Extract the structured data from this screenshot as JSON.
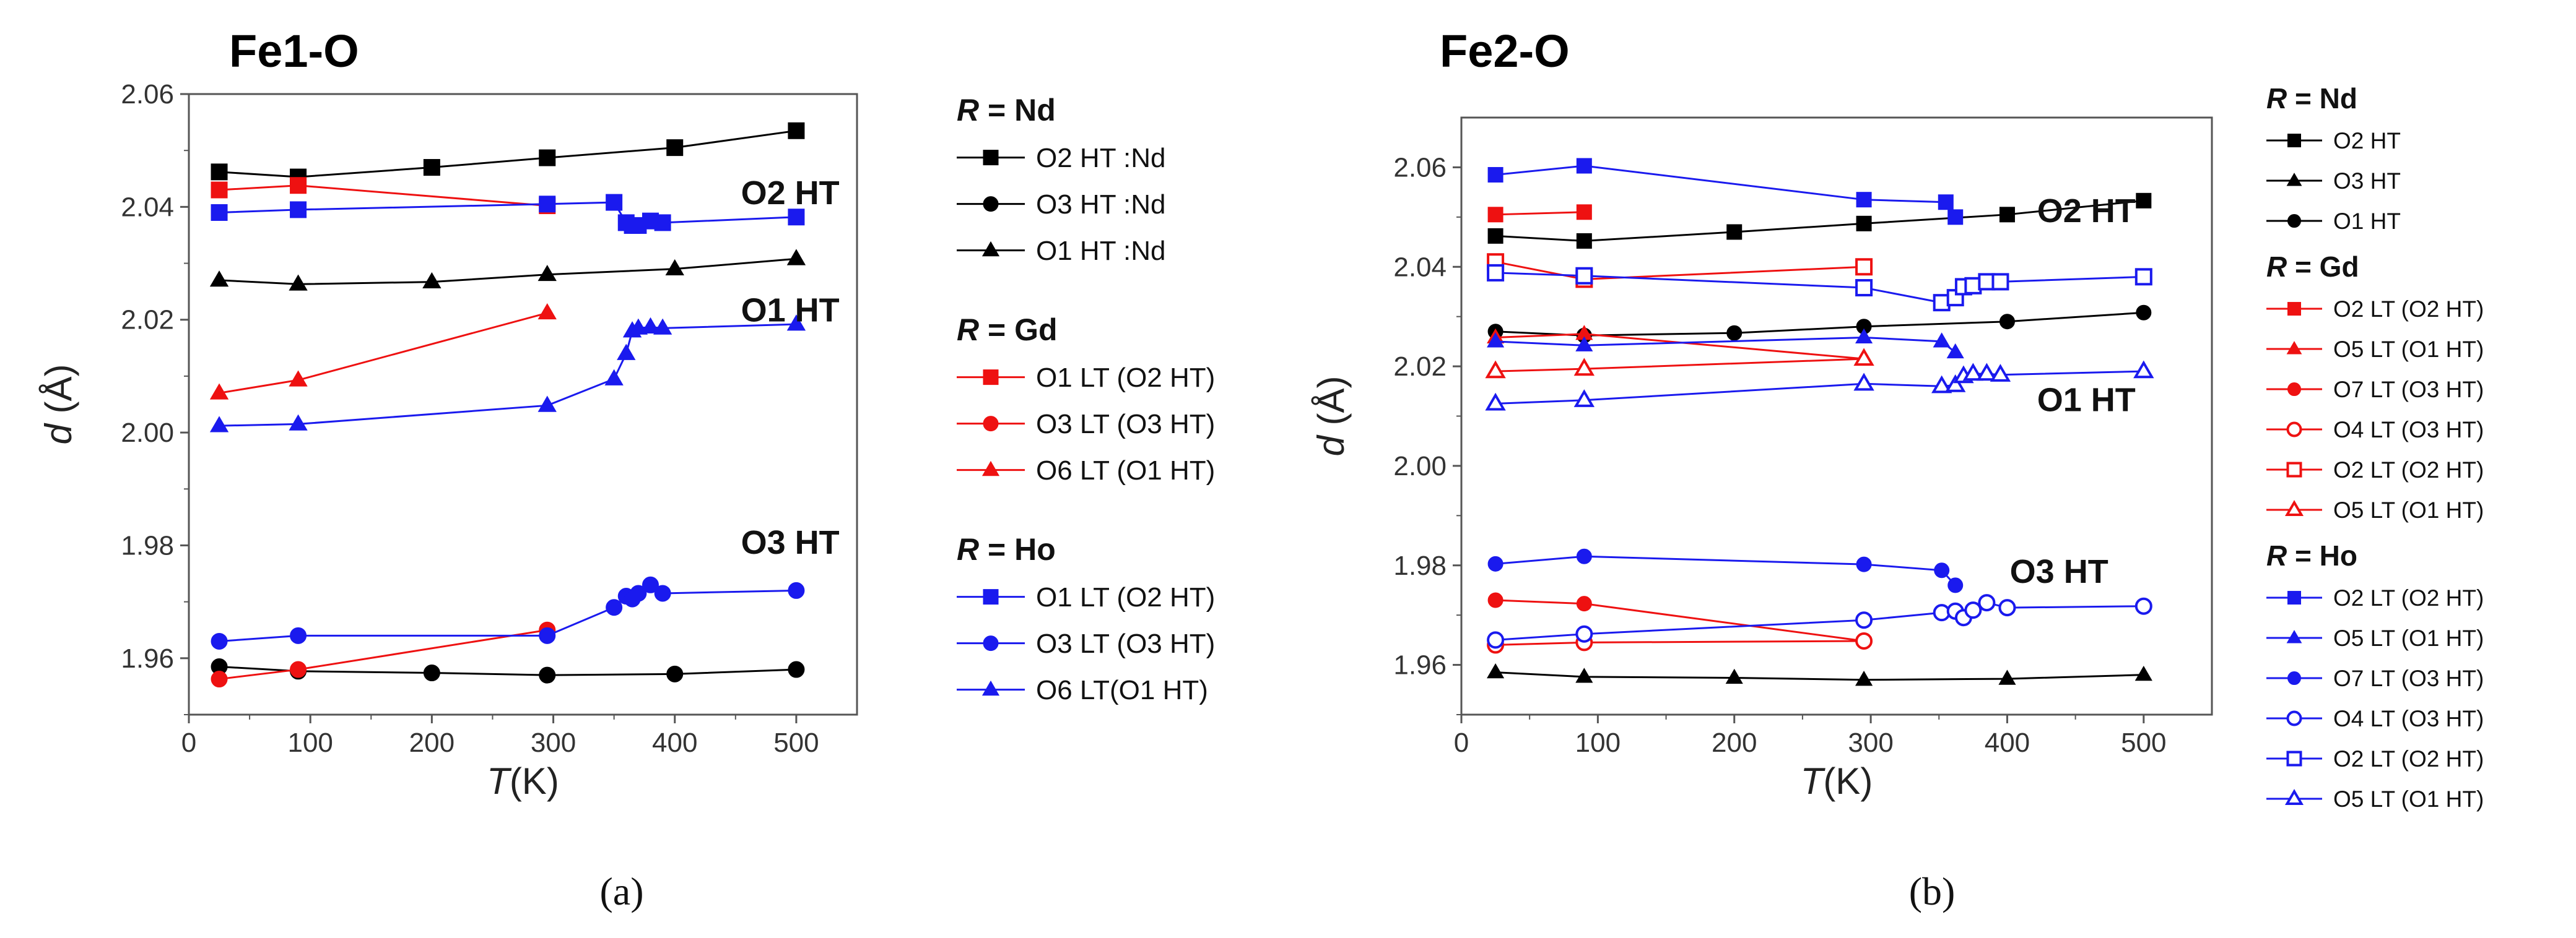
{
  "colors": {
    "Nd": "#000000",
    "Gd": "#ee1111",
    "Ho": "#1a1aee"
  },
  "chart_data": [
    {
      "type": "line",
      "panel": "a",
      "caption": "(a)",
      "title": "Fe1-O",
      "xlabel_italic": "T",
      "xlabel_rest": "(K)",
      "ylabel_italic": "d",
      "ylabel_rest": " (Å)",
      "xlim": [
        0,
        550
      ],
      "ylim": [
        1.95,
        2.06
      ],
      "xticks": [
        0,
        100,
        200,
        300,
        400,
        500
      ],
      "xtick_labels": [
        "0",
        "100",
        "200",
        "300",
        "400",
        "500"
      ],
      "yticks": [
        1.96,
        1.98,
        2.0,
        2.02,
        2.04,
        2.06
      ],
      "ytick_labels": [
        "1.96",
        "1.98",
        "2.00",
        "2.02",
        "2.04",
        "2.06"
      ],
      "annotations": [
        {
          "text": "O2 HT",
          "x": 495,
          "y": 2.0405
        },
        {
          "text": "O1 HT",
          "x": 495,
          "y": 2.0197
        },
        {
          "text": "O3 HT",
          "x": 495,
          "y": 1.9785
        }
      ],
      "legend_groups": [
        {
          "header_italic": "R",
          "header_rest": " = Nd",
          "entries": [
            0,
            1,
            2
          ]
        },
        {
          "header_italic": "R",
          "header_rest": " = Gd",
          "entries": [
            3,
            4,
            5
          ]
        },
        {
          "header_italic": "R",
          "header_rest": " = Ho",
          "entries": [
            6,
            7,
            8
          ]
        }
      ],
      "series": [
        {
          "name": "O2 HT :Nd",
          "group": "Nd",
          "marker": "square",
          "filled": true,
          "x": [
            25,
            90,
            200,
            295,
            400,
            500
          ],
          "y": [
            2.0462,
            2.0453,
            2.047,
            2.0487,
            2.0505,
            2.0535
          ]
        },
        {
          "name": "O3 HT :Nd",
          "group": "Nd",
          "marker": "circle",
          "filled": true,
          "x": [
            25,
            90,
            200,
            295,
            400,
            500
          ],
          "y": [
            1.9585,
            1.9577,
            1.9574,
            1.957,
            1.9572,
            1.958
          ]
        },
        {
          "name": "O1 HT :Nd",
          "group": "Nd",
          "marker": "triangle",
          "filled": true,
          "x": [
            25,
            90,
            200,
            295,
            400,
            500
          ],
          "y": [
            2.027,
            2.0263,
            2.0267,
            2.028,
            2.029,
            2.0308
          ]
        },
        {
          "name": "O1 LT (O2 HT)",
          "group": "Gd",
          "marker": "square",
          "filled": true,
          "x": [
            25,
            90,
            295
          ],
          "y": [
            2.043,
            2.0438,
            2.0402
          ]
        },
        {
          "name": "O3 LT (O3 HT)",
          "group": "Gd",
          "marker": "circle",
          "filled": true,
          "x": [
            25,
            90,
            295
          ],
          "y": [
            1.9563,
            1.958,
            1.965
          ]
        },
        {
          "name": "O6 LT (O1 HT)",
          "group": "Gd",
          "marker": "triangle",
          "filled": true,
          "x": [
            25,
            90,
            295
          ],
          "y": [
            2.007,
            2.0093,
            2.0212
          ]
        },
        {
          "name": "O1 LT (O2 HT)",
          "group": "Ho",
          "marker": "square",
          "filled": true,
          "x": [
            25,
            90,
            295,
            350,
            360,
            365,
            370,
            380,
            390,
            500
          ],
          "y": [
            2.039,
            2.0395,
            2.0405,
            2.0408,
            2.0372,
            2.0367,
            2.0367,
            2.0375,
            2.0372,
            2.0382
          ]
        },
        {
          "name": "O3 LT (O3 HT)",
          "group": "Ho",
          "marker": "circle",
          "filled": true,
          "x": [
            25,
            90,
            295,
            350,
            360,
            365,
            370,
            380,
            390,
            500
          ],
          "y": [
            1.963,
            1.964,
            1.964,
            1.969,
            1.971,
            1.9705,
            1.9715,
            1.973,
            1.9715,
            1.972
          ]
        },
        {
          "name": "O6 LT(O1 HT)",
          "group": "Ho",
          "marker": "triangle",
          "filled": true,
          "x": [
            25,
            90,
            295,
            350,
            360,
            365,
            370,
            380,
            390,
            500
          ],
          "y": [
            2.0012,
            2.0015,
            2.0048,
            2.0095,
            2.014,
            2.018,
            2.0185,
            2.0187,
            2.0185,
            2.0192
          ]
        }
      ]
    },
    {
      "type": "line",
      "panel": "b",
      "caption": "(b)",
      "title": "Fe2-O",
      "xlabel_italic": "T",
      "xlabel_rest": "(K)",
      "ylabel_italic": "d",
      "ylabel_rest": " (Å)",
      "xlim": [
        0,
        550
      ],
      "ylim": [
        1.95,
        2.07
      ],
      "xticks": [
        0,
        100,
        200,
        300,
        400,
        500
      ],
      "xtick_labels": [
        "0",
        "100",
        "200",
        "300",
        "400",
        "500"
      ],
      "yticks": [
        1.96,
        1.98,
        2.0,
        2.02,
        2.04,
        2.06
      ],
      "ytick_labels": [
        "1.96",
        "1.98",
        "2.00",
        "2.02",
        "2.04",
        "2.06"
      ],
      "annotations": [
        {
          "text": "O2 HT",
          "x": 458,
          "y": 2.049
        },
        {
          "text": "O1 HT",
          "x": 458,
          "y": 2.011
        },
        {
          "text": "O3 HT",
          "x": 438,
          "y": 1.9765
        }
      ],
      "legend_groups": [
        {
          "header_italic": "R",
          "header_rest": " = Nd",
          "entries": [
            0,
            1,
            2
          ]
        },
        {
          "header_italic": "R",
          "header_rest": " = Gd",
          "entries": [
            3,
            4,
            5,
            6,
            7,
            8
          ]
        },
        {
          "header_italic": "R",
          "header_rest": " = Ho",
          "entries": [
            9,
            10,
            11,
            12,
            13,
            14
          ]
        }
      ],
      "series": [
        {
          "name": "O2 HT",
          "group": "Nd",
          "marker": "square",
          "filled": true,
          "x": [
            25,
            90,
            200,
            295,
            400,
            500
          ],
          "y": [
            2.0462,
            2.0452,
            2.047,
            2.0487,
            2.0505,
            2.0533
          ]
        },
        {
          "name": "O3 HT",
          "group": "Nd",
          "marker": "triangle",
          "filled": true,
          "x": [
            25,
            90,
            200,
            295,
            400,
            500
          ],
          "y": [
            1.9585,
            1.9576,
            1.9574,
            1.957,
            1.9572,
            1.958
          ]
        },
        {
          "name": "O1 HT",
          "group": "Nd",
          "marker": "circle",
          "filled": true,
          "x": [
            25,
            90,
            200,
            295,
            400,
            500
          ],
          "y": [
            2.027,
            2.0262,
            2.0267,
            2.028,
            2.029,
            2.0308
          ]
        },
        {
          "name": "O2 LT (O2 HT)",
          "group": "Gd",
          "marker": "square",
          "filled": true,
          "x": [
            25,
            90
          ],
          "y": [
            2.0505,
            2.051
          ]
        },
        {
          "name": "O5 LT (O1 HT)",
          "group": "Gd",
          "marker": "triangle",
          "filled": true,
          "x": [
            25,
            90,
            295
          ],
          "y": [
            2.0258,
            2.0265,
            2.0215
          ]
        },
        {
          "name": "O7 LT (O3 HT)",
          "group": "Gd",
          "marker": "circle",
          "filled": true,
          "x": [
            25,
            90,
            295
          ],
          "y": [
            1.973,
            1.9723,
            1.9648
          ]
        },
        {
          "name": "O4 LT (O3 HT)",
          "group": "Gd",
          "marker": "circle",
          "filled": false,
          "x": [
            25,
            90,
            295
          ],
          "y": [
            1.964,
            1.9645,
            1.9648
          ]
        },
        {
          "name": "O2 LT (O2 HT)",
          "group": "Gd",
          "marker": "square",
          "filled": false,
          "x": [
            25,
            90,
            295
          ],
          "y": [
            2.041,
            2.0375,
            2.04
          ]
        },
        {
          "name": "O5 LT (O1 HT)",
          "group": "Gd",
          "marker": "triangle",
          "filled": false,
          "x": [
            25,
            90,
            295
          ],
          "y": [
            2.019,
            2.0195,
            2.0215
          ]
        },
        {
          "name": "O2 LT (O2 HT)",
          "group": "Ho",
          "marker": "square",
          "filled": true,
          "x": [
            25,
            90,
            295,
            355,
            362
          ],
          "y": [
            2.0585,
            2.0603,
            2.0535,
            2.053,
            2.05
          ]
        },
        {
          "name": "O5 LT (O1 HT)",
          "group": "Ho",
          "marker": "triangle",
          "filled": true,
          "x": [
            25,
            90,
            295,
            352,
            362
          ],
          "y": [
            2.025,
            2.0242,
            2.0258,
            2.025,
            2.0228
          ]
        },
        {
          "name": "O7 LT (O3 HT)",
          "group": "Ho",
          "marker": "circle",
          "filled": true,
          "x": [
            25,
            90,
            295,
            352,
            362
          ],
          "y": [
            1.9803,
            1.9818,
            1.9802,
            1.979,
            1.976
          ]
        },
        {
          "name": "O4 LT (O3 HT)",
          "group": "Ho",
          "marker": "circle",
          "filled": false,
          "x": [
            25,
            90,
            295,
            352,
            362,
            368,
            375,
            385,
            400,
            500
          ],
          "y": [
            1.965,
            1.9662,
            1.969,
            1.9705,
            1.9708,
            1.9695,
            1.971,
            1.9725,
            1.9715,
            1.9718
          ]
        },
        {
          "name": "O2 LT (O2 HT)",
          "group": "Ho",
          "marker": "square",
          "filled": false,
          "x": [
            25,
            90,
            295,
            352,
            362,
            368,
            375,
            385,
            395,
            500
          ],
          "y": [
            2.0388,
            2.0382,
            2.0358,
            2.0328,
            2.0338,
            2.036,
            2.0362,
            2.037,
            2.037,
            2.038
          ]
        },
        {
          "name": "O5 LT (O1 HT)",
          "group": "Ho",
          "marker": "triangle",
          "filled": false,
          "x": [
            25,
            90,
            295,
            352,
            362,
            368,
            375,
            385,
            395,
            500
          ],
          "y": [
            2.0125,
            2.0132,
            2.0165,
            2.016,
            2.0162,
            2.018,
            2.0185,
            2.0185,
            2.0183,
            2.019
          ]
        }
      ]
    }
  ]
}
